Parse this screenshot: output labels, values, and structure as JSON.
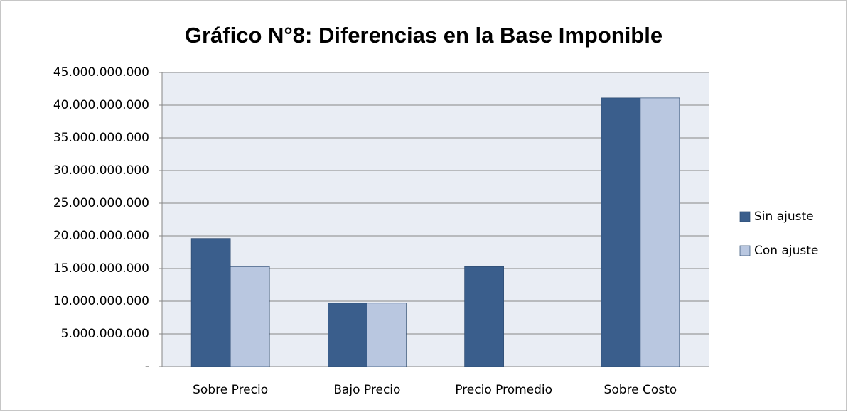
{
  "chart_data": {
    "type": "bar",
    "title": "Gráfico N°8: Diferencias en la Base Imponible",
    "categories": [
      "Sobre Precio",
      "Bajo Precio",
      "Precio Promedio",
      "Sobre Costo"
    ],
    "series": [
      {
        "name": "Sin ajuste",
        "color": "#3a5e8c",
        "values": [
          19600000000,
          9700000000,
          15300000000,
          41100000000
        ]
      },
      {
        "name": "Con ajuste",
        "color": "#b9c7e0",
        "values": [
          15300000000,
          9700000000,
          null,
          41100000000
        ]
      }
    ],
    "ylim": [
      0,
      45000000000
    ],
    "yticks": [
      {
        "value": 0,
        "label": "-"
      },
      {
        "value": 5000000000,
        "label": "5.000.000.000"
      },
      {
        "value": 10000000000,
        "label": "10.000.000.000"
      },
      {
        "value": 15000000000,
        "label": "15.000.000.000"
      },
      {
        "value": 20000000000,
        "label": "20.000.000.000"
      },
      {
        "value": 25000000000,
        "label": "25.000.000.000"
      },
      {
        "value": 30000000000,
        "label": "30.000.000.000"
      },
      {
        "value": 35000000000,
        "label": "35.000.000.000"
      },
      {
        "value": 40000000000,
        "label": "40.000.000.000"
      },
      {
        "value": 45000000000,
        "label": "45.000.000.000"
      }
    ],
    "grid": true,
    "legend": "right"
  }
}
